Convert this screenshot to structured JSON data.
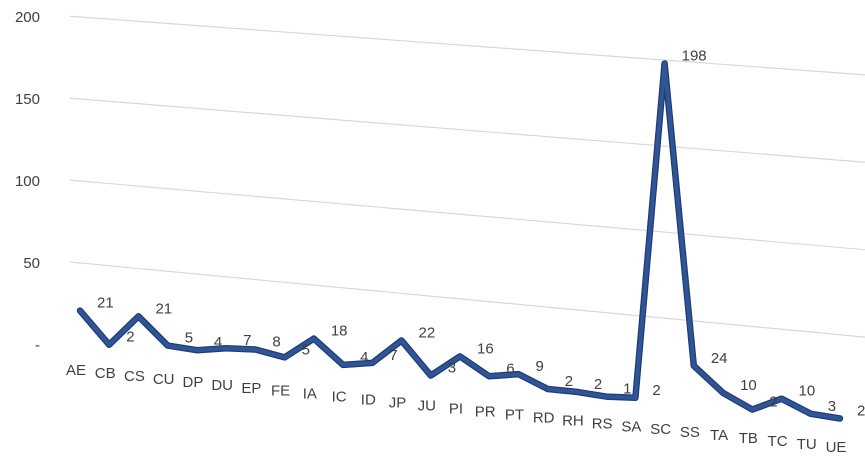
{
  "chart_data": {
    "type": "line",
    "title": "",
    "xlabel": "",
    "ylabel": "",
    "ylim": [
      0,
      200
    ],
    "yticks": [
      {
        "value": 0,
        "label": "-"
      },
      {
        "value": 50,
        "label": "50"
      },
      {
        "value": 100,
        "label": "100"
      },
      {
        "value": 150,
        "label": "150"
      },
      {
        "value": 200,
        "label": "200"
      }
    ],
    "grid": true,
    "legend": "none",
    "series_color": "#2f5597",
    "categories": [
      "AE",
      "CB",
      "CS",
      "CU",
      "DP",
      "DU",
      "EP",
      "FE",
      "IA",
      "IC",
      "ID",
      "JP",
      "JU",
      "PI",
      "PR",
      "PT",
      "RD",
      "RH",
      "RS",
      "SA",
      "SC",
      "SS",
      "TA",
      "TB",
      "TC",
      "TU",
      "UE"
    ],
    "values": [
      21,
      2,
      21,
      5,
      4,
      7,
      8,
      5,
      18,
      4,
      7,
      22,
      3,
      16,
      6,
      9,
      2,
      2,
      1,
      2,
      198,
      24,
      10,
      2,
      10,
      3,
      2
    ],
    "data_labels": [
      "21",
      "2",
      "21",
      "5",
      "4",
      "7",
      "8",
      "5",
      "18",
      "4",
      "7",
      "22",
      "3",
      "16",
      "6",
      "9",
      "2",
      "2",
      "1",
      "2",
      "198",
      "24",
      "10",
      "2",
      "10",
      "3",
      "2"
    ]
  }
}
